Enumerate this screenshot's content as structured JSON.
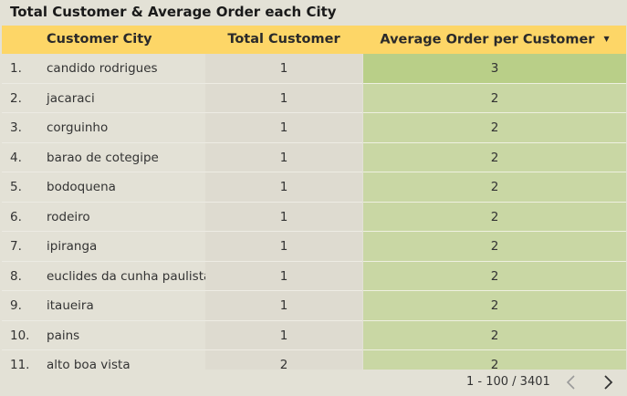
{
  "title": "Total Customer & Average Order each City",
  "table": {
    "headers": {
      "city": "Customer City",
      "total": "Total Customer",
      "avg": "Average Order per Customer",
      "sort_indicator": "▼"
    },
    "rows": [
      {
        "num": "1.",
        "city": "candido rodrigues",
        "total": "1",
        "avg": "3"
      },
      {
        "num": "2.",
        "city": "jacaraci",
        "total": "1",
        "avg": "2"
      },
      {
        "num": "3.",
        "city": "corguinho",
        "total": "1",
        "avg": "2"
      },
      {
        "num": "4.",
        "city": "barao de cotegipe",
        "total": "1",
        "avg": "2"
      },
      {
        "num": "5.",
        "city": "bodoquena",
        "total": "1",
        "avg": "2"
      },
      {
        "num": "6.",
        "city": "rodeiro",
        "total": "1",
        "avg": "2"
      },
      {
        "num": "7.",
        "city": "ipiranga",
        "total": "1",
        "avg": "2"
      },
      {
        "num": "8.",
        "city": "euclides da cunha paulista",
        "total": "1",
        "avg": "2"
      },
      {
        "num": "9.",
        "city": "itaueira",
        "total": "1",
        "avg": "2"
      },
      {
        "num": "10.",
        "city": "pains",
        "total": "1",
        "avg": "2"
      },
      {
        "num": "11.",
        "city": "alto boa vista",
        "total": "2",
        "avg": "2"
      }
    ]
  },
  "pagination": {
    "text": "1 - 100 / 3401",
    "prev_icon": "chevron-left-icon",
    "next_icon": "chevron-right-icon"
  },
  "colors": {
    "header_bg": "#fdd667",
    "avg_cell_bg": "#c9d7a4",
    "avg_top_cell_bg": "#b9cf88",
    "total_cell_bg": "#dedbd0",
    "page_bg": "#e3e1d6"
  }
}
